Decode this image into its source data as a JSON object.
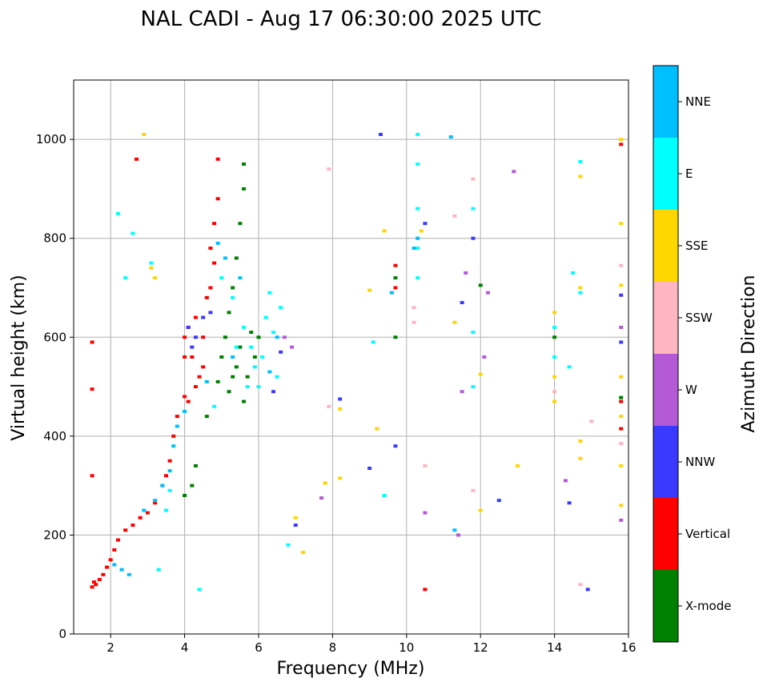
{
  "chart_data": {
    "type": "scatter",
    "title": "NAL CADI - Aug 17 06:30:00 2025 UTC",
    "xlabel": "Frequency (MHz)",
    "ylabel": "Virtual height (km)",
    "xlim": [
      1,
      16
    ],
    "ylim": [
      0,
      1120
    ],
    "xticks": [
      2,
      4,
      6,
      8,
      10,
      12,
      14,
      16
    ],
    "yticks": [
      0,
      200,
      400,
      600,
      800,
      1000
    ],
    "grid": true,
    "colorbar": {
      "title": "Azimuth Direction",
      "categories": [
        {
          "name": "X-mode",
          "color": "#008000"
        },
        {
          "name": "Vertical",
          "color": "#ff0000"
        },
        {
          "name": "NNW",
          "color": "#3a3aff"
        },
        {
          "name": "W",
          "color": "#b45ad6"
        },
        {
          "name": "SSW",
          "color": "#ffb6c1"
        },
        {
          "name": "SSE",
          "color": "#ffd700"
        },
        {
          "name": "E",
          "color": "#00ffff"
        },
        {
          "name": "NNE",
          "color": "#00bfff"
        }
      ]
    },
    "series": [
      {
        "name": "Vertical",
        "points": [
          [
            1.5,
            95
          ],
          [
            1.55,
            105
          ],
          [
            1.6,
            100
          ],
          [
            1.7,
            110
          ],
          [
            1.8,
            120
          ],
          [
            1.9,
            135
          ],
          [
            2.0,
            150
          ],
          [
            2.1,
            170
          ],
          [
            2.2,
            190
          ],
          [
            2.4,
            210
          ],
          [
            2.6,
            220
          ],
          [
            2.8,
            235
          ],
          [
            3.0,
            245
          ],
          [
            3.2,
            265
          ],
          [
            3.4,
            300
          ],
          [
            3.5,
            320
          ],
          [
            3.6,
            350
          ],
          [
            3.7,
            400
          ],
          [
            3.8,
            440
          ],
          [
            4.0,
            480
          ],
          [
            4.0,
            560
          ],
          [
            4.0,
            600
          ],
          [
            4.1,
            620
          ],
          [
            4.2,
            560
          ],
          [
            4.3,
            640
          ],
          [
            4.4,
            520
          ],
          [
            4.5,
            600
          ],
          [
            4.6,
            680
          ],
          [
            4.7,
            700
          ],
          [
            4.8,
            750
          ],
          [
            4.8,
            830
          ],
          [
            4.9,
            880
          ],
          [
            4.9,
            960
          ],
          [
            4.7,
            780
          ],
          [
            4.5,
            540
          ],
          [
            4.3,
            500
          ],
          [
            4.1,
            470
          ],
          [
            1.5,
            320
          ],
          [
            1.5,
            590
          ],
          [
            1.5,
            495
          ],
          [
            2.7,
            960
          ],
          [
            15.8,
            990
          ],
          [
            15.8,
            470
          ],
          [
            15.8,
            415
          ],
          [
            10.5,
            90
          ],
          [
            9.7,
            745
          ],
          [
            9.7,
            700
          ]
        ]
      },
      {
        "name": "X-mode",
        "points": [
          [
            4.0,
            280
          ],
          [
            4.2,
            300
          ],
          [
            4.3,
            340
          ],
          [
            4.6,
            440
          ],
          [
            4.9,
            510
          ],
          [
            5.0,
            560
          ],
          [
            5.1,
            600
          ],
          [
            5.2,
            650
          ],
          [
            5.3,
            700
          ],
          [
            5.4,
            760
          ],
          [
            5.5,
            830
          ],
          [
            5.6,
            900
          ],
          [
            5.6,
            950
          ],
          [
            5.3,
            520
          ],
          [
            5.5,
            580
          ],
          [
            5.7,
            520
          ],
          [
            5.8,
            610
          ],
          [
            5.2,
            490
          ],
          [
            5.4,
            540
          ],
          [
            5.6,
            470
          ],
          [
            5.9,
            560
          ],
          [
            6.0,
            600
          ],
          [
            9.7,
            600
          ],
          [
            9.7,
            720
          ],
          [
            12.0,
            705
          ],
          [
            14.0,
            600
          ],
          [
            15.8,
            478
          ]
        ]
      },
      {
        "name": "NNW",
        "points": [
          [
            4.3,
            600
          ],
          [
            4.5,
            640
          ],
          [
            4.2,
            580
          ],
          [
            4.1,
            620
          ],
          [
            4.7,
            650
          ],
          [
            6.6,
            570
          ],
          [
            6.4,
            490
          ],
          [
            9.3,
            1010
          ],
          [
            9.0,
            335
          ],
          [
            9.7,
            380
          ],
          [
            10.5,
            830
          ],
          [
            11.5,
            670
          ],
          [
            11.8,
            800
          ],
          [
            12.5,
            270
          ],
          [
            14.4,
            265
          ],
          [
            14.9,
            90
          ],
          [
            15.8,
            685
          ],
          [
            15.8,
            590
          ],
          [
            7.0,
            220
          ],
          [
            8.2,
            475
          ]
        ]
      },
      {
        "name": "W",
        "points": [
          [
            6.7,
            600
          ],
          [
            6.9,
            580
          ],
          [
            7.7,
            275
          ],
          [
            10.5,
            245
          ],
          [
            11.4,
            200
          ],
          [
            11.6,
            730
          ],
          [
            12.2,
            690
          ],
          [
            12.9,
            935
          ],
          [
            14.3,
            310
          ],
          [
            15.8,
            620
          ],
          [
            15.8,
            230
          ],
          [
            11.5,
            490
          ],
          [
            12.1,
            560
          ]
        ]
      },
      {
        "name": "SSW",
        "points": [
          [
            7.9,
            460
          ],
          [
            7.9,
            940
          ],
          [
            10.2,
            660
          ],
          [
            10.2,
            630
          ],
          [
            10.5,
            340
          ],
          [
            11.3,
            845
          ],
          [
            11.8,
            920
          ],
          [
            11.8,
            290
          ],
          [
            14.7,
            100
          ],
          [
            15.0,
            430
          ],
          [
            15.8,
            745
          ],
          [
            15.8,
            385
          ],
          [
            14.0,
            490
          ]
        ]
      },
      {
        "name": "SSE",
        "points": [
          [
            2.9,
            1010
          ],
          [
            3.1,
            740
          ],
          [
            3.2,
            720
          ],
          [
            7.0,
            235
          ],
          [
            7.2,
            165
          ],
          [
            7.8,
            305
          ],
          [
            8.2,
            455
          ],
          [
            8.2,
            315
          ],
          [
            9.0,
            695
          ],
          [
            9.2,
            415
          ],
          [
            9.4,
            815
          ],
          [
            10.4,
            815
          ],
          [
            11.3,
            630
          ],
          [
            12.0,
            525
          ],
          [
            12.0,
            250
          ],
          [
            13.0,
            340
          ],
          [
            14.7,
            925
          ],
          [
            14.7,
            700
          ],
          [
            14.7,
            390
          ],
          [
            14.7,
            355
          ],
          [
            15.8,
            1000
          ],
          [
            15.8,
            830
          ],
          [
            15.8,
            705
          ],
          [
            15.8,
            520
          ],
          [
            15.8,
            440
          ],
          [
            15.8,
            340
          ],
          [
            15.8,
            260
          ],
          [
            14.0,
            650
          ],
          [
            14.0,
            520
          ],
          [
            14.0,
            470
          ]
        ]
      },
      {
        "name": "E",
        "points": [
          [
            2.2,
            850
          ],
          [
            2.4,
            720
          ],
          [
            2.6,
            810
          ],
          [
            3.1,
            750
          ],
          [
            3.3,
            130
          ],
          [
            3.5,
            250
          ],
          [
            3.6,
            290
          ],
          [
            4.8,
            460
          ],
          [
            5.0,
            720
          ],
          [
            5.3,
            680
          ],
          [
            5.6,
            620
          ],
          [
            5.8,
            580
          ],
          [
            5.9,
            540
          ],
          [
            6.1,
            560
          ],
          [
            6.2,
            640
          ],
          [
            6.3,
            690
          ],
          [
            6.4,
            610
          ],
          [
            6.5,
            520
          ],
          [
            6.6,
            660
          ],
          [
            5.7,
            500
          ],
          [
            5.4,
            580
          ],
          [
            6.0,
            500
          ],
          [
            4.4,
            90
          ],
          [
            6.8,
            180
          ],
          [
            9.1,
            590
          ],
          [
            9.4,
            280
          ],
          [
            10.3,
            1010
          ],
          [
            10.3,
            950
          ],
          [
            10.3,
            860
          ],
          [
            10.3,
            780
          ],
          [
            10.3,
            720
          ],
          [
            11.8,
            860
          ],
          [
            11.8,
            610
          ],
          [
            11.8,
            500
          ],
          [
            14.4,
            540
          ],
          [
            14.5,
            730
          ],
          [
            14.7,
            690
          ],
          [
            14.7,
            955
          ],
          [
            14.0,
            560
          ],
          [
            14.0,
            620
          ]
        ]
      },
      {
        "name": "NNE",
        "points": [
          [
            2.1,
            140
          ],
          [
            2.3,
            130
          ],
          [
            2.5,
            120
          ],
          [
            2.9,
            250
          ],
          [
            3.2,
            270
          ],
          [
            3.4,
            300
          ],
          [
            3.6,
            330
          ],
          [
            3.7,
            380
          ],
          [
            3.8,
            420
          ],
          [
            4.0,
            450
          ],
          [
            4.6,
            510
          ],
          [
            4.9,
            790
          ],
          [
            5.1,
            760
          ],
          [
            5.3,
            560
          ],
          [
            5.5,
            720
          ],
          [
            6.3,
            530
          ],
          [
            6.5,
            600
          ],
          [
            11.2,
            1005
          ],
          [
            11.3,
            210
          ],
          [
            10.2,
            780
          ],
          [
            10.3,
            800
          ],
          [
            9.6,
            690
          ]
        ]
      }
    ]
  }
}
